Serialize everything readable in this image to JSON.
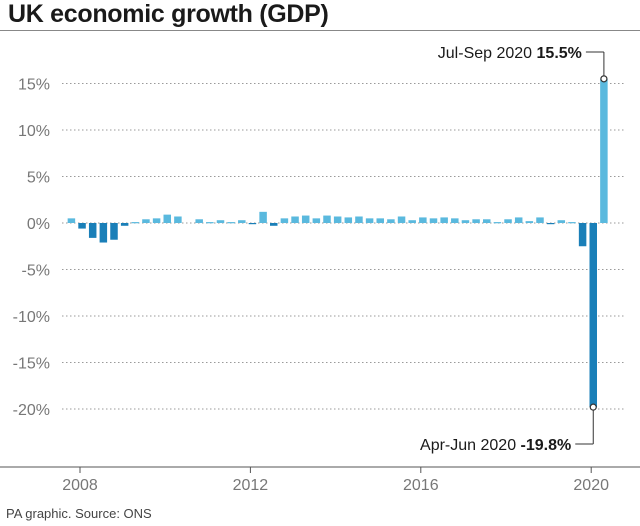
{
  "header": {
    "title": "UK economic growth (GDP)"
  },
  "footer": {
    "source": "PA graphic. Source: ONS"
  },
  "chart_data": {
    "type": "bar",
    "title": "UK economic growth (GDP)",
    "xlabel": "",
    "ylabel": "",
    "ylim": [
      -20,
      17
    ],
    "yticks": [
      15,
      10,
      5,
      0,
      -5,
      -10,
      -15,
      -20
    ],
    "ytick_labels": [
      "15%",
      "10%",
      "5%",
      "0%",
      "-5%",
      "-10%",
      "-15%",
      "-20%"
    ],
    "xtick_labels": [
      "2008",
      "2012",
      "2016",
      "2020"
    ],
    "grid": "horizontal dotted",
    "colors": {
      "positive": "#5ab9de",
      "negative": "#1a7fb8"
    },
    "categories": [
      "2008 Q1",
      "2008 Q2",
      "2008 Q3",
      "2008 Q4",
      "2009 Q1",
      "2009 Q2",
      "2009 Q3",
      "2009 Q4",
      "2010 Q1",
      "2010 Q2",
      "2010 Q3",
      "2010 Q4",
      "2011 Q1",
      "2011 Q2",
      "2011 Q3",
      "2011 Q4",
      "2012 Q1",
      "2012 Q2",
      "2012 Q3",
      "2012 Q4",
      "2013 Q1",
      "2013 Q2",
      "2013 Q3",
      "2013 Q4",
      "2014 Q1",
      "2014 Q2",
      "2014 Q3",
      "2014 Q4",
      "2015 Q1",
      "2015 Q2",
      "2015 Q3",
      "2015 Q4",
      "2016 Q1",
      "2016 Q2",
      "2016 Q3",
      "2016 Q4",
      "2017 Q1",
      "2017 Q2",
      "2017 Q3",
      "2017 Q4",
      "2018 Q1",
      "2018 Q2",
      "2018 Q3",
      "2018 Q4",
      "2019 Q1",
      "2019 Q2",
      "2019 Q3",
      "2019 Q4",
      "2020 Q1",
      "2020 Q2",
      "2020 Q3"
    ],
    "values": [
      0.5,
      -0.6,
      -1.6,
      -2.1,
      -1.8,
      -0.3,
      0.1,
      0.4,
      0.5,
      0.9,
      0.7,
      0.0,
      0.4,
      0.1,
      0.3,
      0.1,
      0.3,
      -0.1,
      1.2,
      -0.3,
      0.5,
      0.7,
      0.8,
      0.5,
      0.8,
      0.7,
      0.6,
      0.7,
      0.5,
      0.5,
      0.4,
      0.7,
      0.3,
      0.6,
      0.5,
      0.6,
      0.5,
      0.3,
      0.4,
      0.4,
      0.1,
      0.4,
      0.6,
      0.2,
      0.6,
      -0.1,
      0.3,
      0.1,
      -2.5,
      -19.8,
      15.5
    ],
    "annotations": [
      {
        "category": "2020 Q3",
        "label": "Jul-Sep 2020",
        "value_label": "15.5%",
        "value": 15.5
      },
      {
        "category": "2020 Q2",
        "label": "Apr-Jun 2020",
        "value_label": "-19.8%",
        "value": -19.8
      }
    ]
  }
}
